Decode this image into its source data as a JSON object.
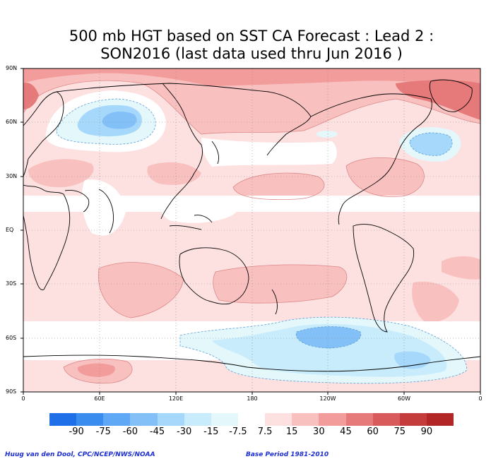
{
  "title": {
    "line1": "500 mb HGT based on SST CA Forecast : Lead 2 :",
    "line2": "SON2016 (last data used thru Jun 2016 )"
  },
  "axes": {
    "y_labels": [
      "90N",
      "60N",
      "30N",
      "EQ",
      "30S",
      "60S",
      "90S"
    ],
    "x_labels": [
      "0",
      "60E",
      "120E",
      "180",
      "120W",
      "60W",
      "0"
    ]
  },
  "colorbar": {
    "labels": [
      "-90",
      "-75",
      "-60",
      "-45",
      "-30",
      "-15",
      "-7.5",
      "7.5",
      "15",
      "30",
      "45",
      "60",
      "75",
      "90"
    ],
    "colors": [
      "#1e6fe8",
      "#3b8cef",
      "#5fa8f5",
      "#82c0f7",
      "#a6d8fb",
      "#c8ecfb",
      "#e4f8fc",
      "#ffffff",
      "#fde0e0",
      "#f9c0c0",
      "#f29c9c",
      "#e67a7a",
      "#d85a5a",
      "#c53c3c",
      "#b22626"
    ]
  },
  "credits": {
    "left": "Huug van den Dool, CPC/NCEP/NWS/NOAA",
    "right": "Base Period 1981-2010"
  }
}
